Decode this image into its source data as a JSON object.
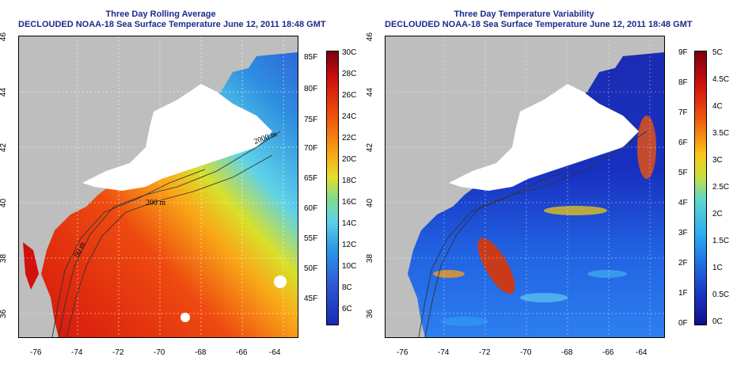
{
  "left_panel": {
    "title": "Three Day Rolling Average",
    "subtitle": "DECLOUDED NOAA-18 Sea Surface Temperature June 12, 2011 18:48 GMT",
    "colorbar_f": [
      "85F",
      "80F",
      "75F",
      "70F",
      "65F",
      "60F",
      "55F",
      "50F",
      "45F"
    ],
    "colorbar_c": [
      "30C",
      "28C",
      "26C",
      "24C",
      "22C",
      "20C",
      "18C",
      "16C",
      "14C",
      "12C",
      "10C",
      "8C",
      "6C"
    ],
    "contour_labels": [
      "2000 m",
      "200 m",
      "50 m"
    ]
  },
  "right_panel": {
    "title": "Three Day Temperature Variability",
    "subtitle": "DECLOUDED NOAA-18 Sea Surface Temperature June 12, 2011 18:48 GMT",
    "colorbar_f": [
      "9F",
      "8F",
      "7F",
      "6F",
      "5F",
      "4F",
      "3F",
      "2F",
      "1F",
      "0F"
    ],
    "colorbar_c": [
      "5C",
      "4.5C",
      "4C",
      "3.5C",
      "3C",
      "2.5C",
      "2C",
      "1.5C",
      "1C",
      "0.5C",
      "0C"
    ]
  },
  "axes": {
    "x_ticks": [
      "-76",
      "-74",
      "-72",
      "-70",
      "-68",
      "-66",
      "-64"
    ],
    "y_ticks": [
      "36",
      "38",
      "40",
      "42",
      "44",
      "46"
    ]
  },
  "colors": {
    "land": "#bebebe",
    "cloud": "#ffffff",
    "title": "#1a2a8c"
  }
}
